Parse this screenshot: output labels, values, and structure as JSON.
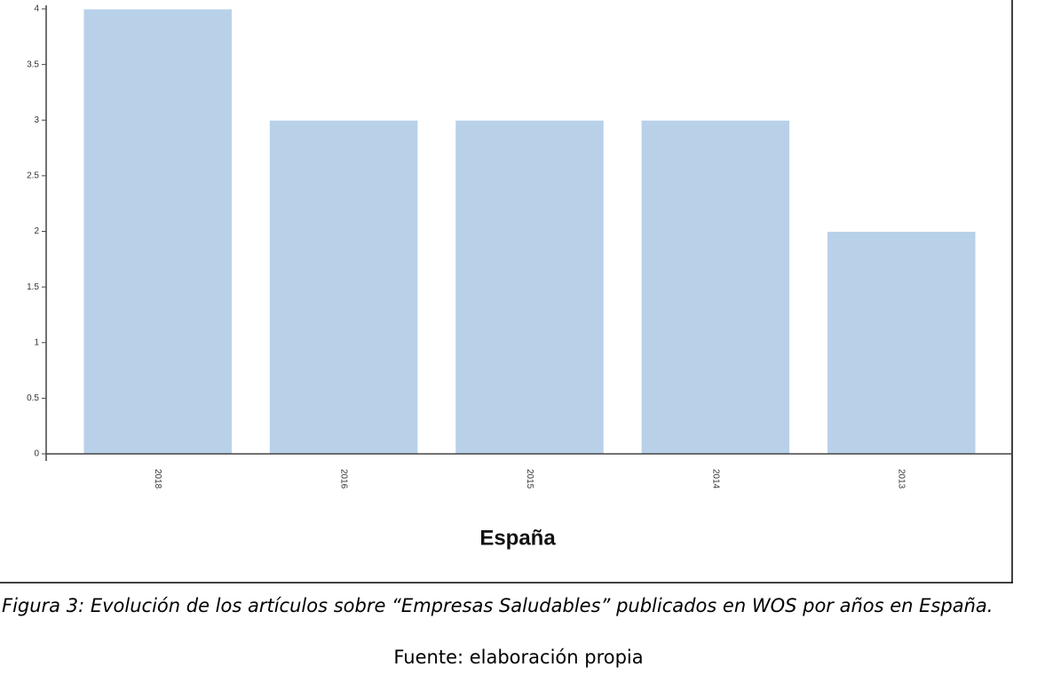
{
  "chart_data": {
    "type": "bar",
    "x_title": "España",
    "categories": [
      "2018",
      "2016",
      "2015",
      "2014",
      "2013"
    ],
    "values": [
      4,
      3,
      3,
      3,
      2
    ],
    "color": "#b8d1e9",
    "ylim": [
      0,
      4
    ],
    "yticks": [
      0,
      0.5,
      1,
      1.5,
      2,
      2.5,
      3,
      3.5,
      4
    ]
  },
  "figure_caption": "Figura 3: Evolución de los artículos sobre “Empresas Saludables”  publicados en WOS por años en España.",
  "source": "Fuente: elaboración propia"
}
